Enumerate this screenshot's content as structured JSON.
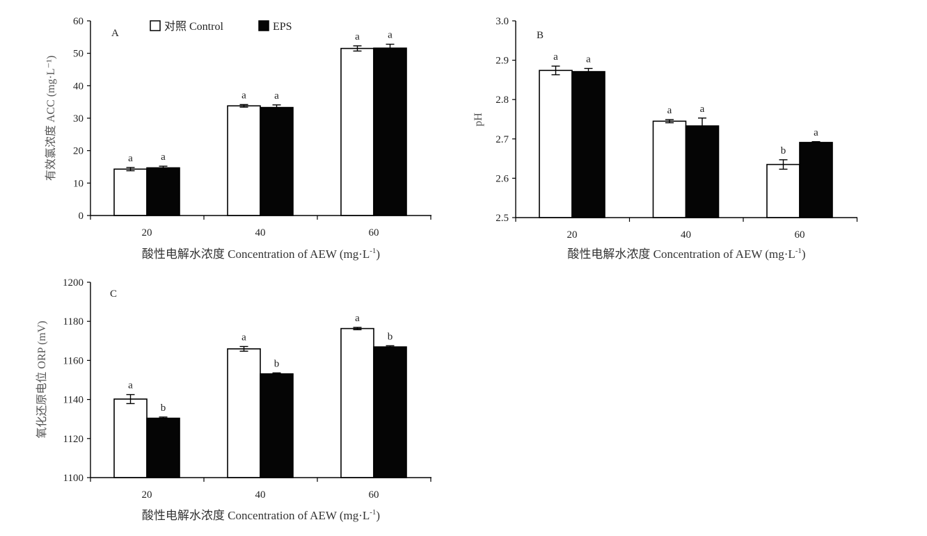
{
  "legend": {
    "control": "对照 Control",
    "eps": "EPS"
  },
  "colors": {
    "control_fill": "#ffffff",
    "eps_fill": "#050505",
    "axis": "#000000"
  },
  "chart_data": [
    {
      "type": "bar",
      "panel": "A",
      "categories": [
        "20",
        "40",
        "60"
      ],
      "xlabel_main": "酸性电解水浓度 Concentration of AEW (mg·L",
      "xlabel_sup": "-1",
      "xlabel_close": ")",
      "ylabel": "有效氯浓度 ACC (mg·L⁻¹)",
      "ylim": [
        0,
        60
      ],
      "yticks": [
        "0",
        "10",
        "20",
        "30",
        "40",
        "50",
        "60"
      ],
      "series": [
        {
          "name": "对照 Control",
          "values": [
            14.3,
            33.8,
            51.5
          ],
          "errors": [
            0.5,
            0.4,
            0.8
          ],
          "labels": [
            "a",
            "a",
            "a"
          ]
        },
        {
          "name": "EPS",
          "values": [
            14.7,
            33.3,
            51.6
          ],
          "errors": [
            0.5,
            0.8,
            1.2
          ],
          "labels": [
            "a",
            "a",
            "a"
          ]
        }
      ]
    },
    {
      "type": "bar",
      "panel": "B",
      "categories": [
        "20",
        "40",
        "60"
      ],
      "xlabel_main": "酸性电解水浓度 Concentration of AEW (mg·L",
      "xlabel_sup": "-1",
      "xlabel_close": ")",
      "ylabel": "pH",
      "ylim": [
        2.5,
        3.0
      ],
      "yticks": [
        "2.5",
        "2.6",
        "2.7",
        "2.8",
        "2.9",
        "3.0"
      ],
      "series": [
        {
          "name": "对照 Control",
          "values": [
            2.874,
            2.745,
            2.635
          ],
          "errors": [
            0.011,
            0.004,
            0.012
          ],
          "labels": [
            "a",
            "a",
            "b"
          ]
        },
        {
          "name": "EPS",
          "values": [
            2.871,
            2.733,
            2.691
          ],
          "errors": [
            0.008,
            0.02,
            0.002
          ],
          "labels": [
            "a",
            "a",
            "a"
          ]
        }
      ]
    },
    {
      "type": "bar",
      "panel": "C",
      "categories": [
        "20",
        "40",
        "60"
      ],
      "xlabel_main": "酸性电解水浓度 Concentration of AEW (mg·L",
      "xlabel_sup": "-1",
      "xlabel_close": ")",
      "ylabel": "氧化还原电位 ORP (mV)",
      "ylim": [
        1100,
        1200
      ],
      "yticks": [
        "1100",
        "1120",
        "1140",
        "1160",
        "1180",
        "1200"
      ],
      "series": [
        {
          "name": "对照 Control",
          "values": [
            1140.2,
            1165.9,
            1176.3
          ],
          "errors": [
            2.3,
            1.2,
            0.6
          ],
          "labels": [
            "a",
            "a",
            "a"
          ]
        },
        {
          "name": "EPS",
          "values": [
            1130.4,
            1153.1,
            1166.9
          ],
          "errors": [
            0.6,
            0.5,
            0.6
          ],
          "labels": [
            "b",
            "b",
            "b"
          ]
        }
      ]
    }
  ]
}
